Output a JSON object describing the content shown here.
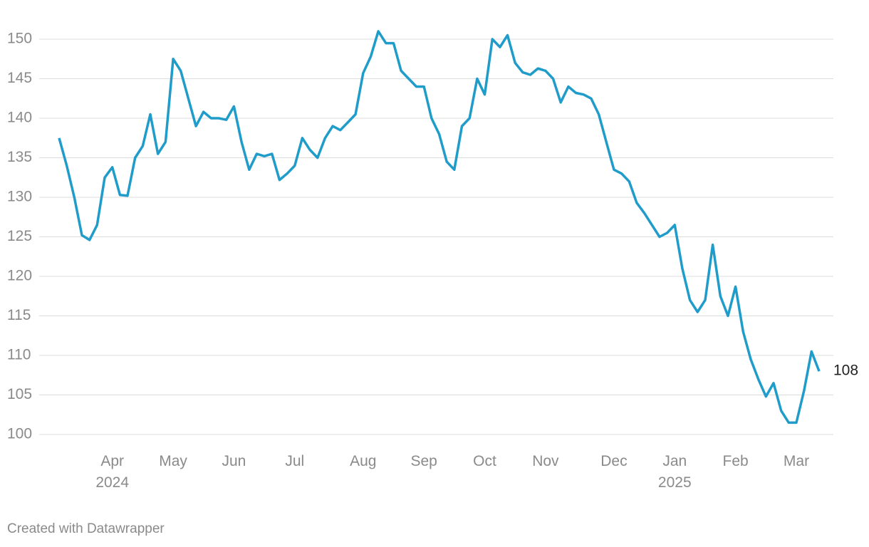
{
  "chart_data": {
    "type": "line",
    "categories": [
      null,
      null,
      null,
      null,
      null,
      null,
      null,
      "Apr 2024",
      null,
      null,
      null,
      null,
      null,
      null,
      null,
      "May",
      null,
      null,
      null,
      null,
      null,
      null,
      null,
      "Jun",
      null,
      null,
      null,
      null,
      null,
      null,
      null,
      "Jul",
      null,
      null,
      null,
      null,
      null,
      null,
      null,
      null,
      "Aug",
      null,
      null,
      null,
      null,
      null,
      null,
      null,
      "Sep",
      null,
      null,
      null,
      null,
      null,
      null,
      null,
      "Oct",
      null,
      null,
      null,
      null,
      null,
      null,
      null,
      "Nov",
      null,
      null,
      null,
      null,
      null,
      null,
      null,
      null,
      "Dec",
      null,
      null,
      null,
      null,
      null,
      null,
      null,
      "Jan 2025",
      null,
      null,
      null,
      null,
      null,
      null,
      null,
      "Feb",
      null,
      null,
      null,
      null,
      null,
      null,
      null,
      "Mar",
      null,
      null,
      null
    ],
    "series": [
      {
        "color": "#1f9cc9",
        "values": [
          137.5,
          134,
          130,
          125.2,
          124.6,
          126.5,
          132.5,
          133.8,
          130.3,
          130.2,
          135,
          136.5,
          140.5,
          135.5,
          137,
          147.5,
          146,
          142.5,
          139,
          140.8,
          140,
          140,
          139.8,
          141.5,
          137,
          133.5,
          135.5,
          135.2,
          135.5,
          132.2,
          133,
          134,
          137.5,
          136,
          135,
          137.5,
          139,
          138.5,
          139.5,
          140.5,
          145.7,
          147.8,
          151,
          149.5,
          149.5,
          146,
          145,
          144,
          144,
          140,
          138,
          134.5,
          133.5,
          139,
          140,
          145,
          143,
          150,
          149,
          150.5,
          147,
          145.8,
          145.5,
          146.3,
          146,
          145,
          142,
          144,
          143.2,
          143,
          142.5,
          140.5,
          137,
          133.5,
          133,
          132,
          129.3,
          128,
          126.5,
          125,
          125.5,
          126.5,
          121,
          117,
          115.5,
          117,
          124,
          117.5,
          115,
          118.7,
          113,
          109.5,
          107,
          104.8,
          106.5,
          103,
          101.5,
          101.5,
          105.5,
          110.5,
          108
        ]
      }
    ],
    "ylim": [
      98,
      154
    ],
    "yticks": [
      100,
      105,
      110,
      115,
      120,
      125,
      130,
      135,
      140,
      145,
      150
    ],
    "grid": true
  },
  "footer": "Created with Datawrapper"
}
